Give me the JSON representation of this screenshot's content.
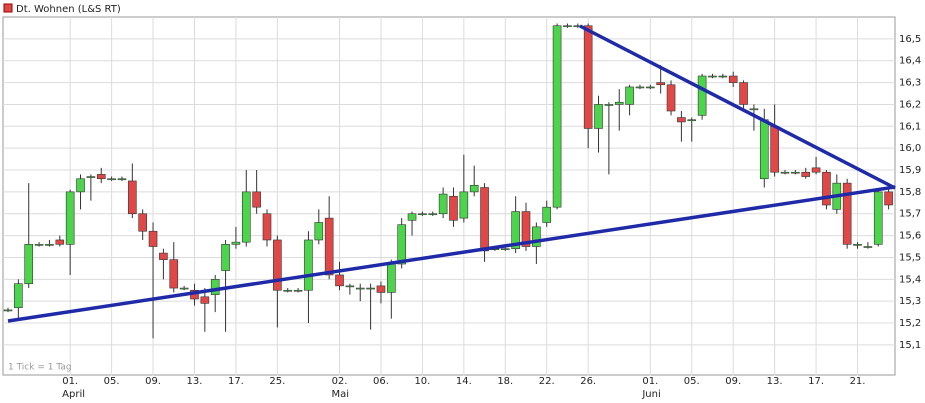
{
  "chart_data": {
    "type": "candlestick",
    "title": "Dt. Wohnen (L&S RT)",
    "note": "1 Tick = 1 Tag",
    "categories": [
      null,
      null,
      null,
      null,
      null,
      null,
      "01.",
      null,
      null,
      null,
      "05.",
      null,
      null,
      null,
      "09.",
      null,
      null,
      null,
      "13.",
      null,
      null,
      null,
      "17.",
      null,
      null,
      null,
      "25.",
      null,
      null,
      null,
      null,
      null,
      "02.",
      null,
      null,
      null,
      "06.",
      null,
      null,
      null,
      "10.",
      null,
      null,
      null,
      "14.",
      null,
      null,
      null,
      "18.",
      null,
      null,
      null,
      "22.",
      null,
      null,
      null,
      "26.",
      null,
      null,
      null,
      null,
      null,
      "01.",
      null,
      null,
      null,
      "05.",
      null,
      null,
      null,
      "09.",
      null,
      null,
      null,
      "13.",
      null,
      null,
      null,
      "17.",
      null,
      null,
      null,
      "21.",
      null,
      null,
      null
    ],
    "months": [
      null,
      null,
      null,
      null,
      null,
      null,
      "April",
      null,
      null,
      null,
      null,
      null,
      null,
      null,
      null,
      null,
      null,
      null,
      null,
      null,
      null,
      null,
      null,
      null,
      null,
      null,
      null,
      null,
      null,
      null,
      null,
      null,
      "Mai",
      null,
      null,
      null,
      null,
      null,
      null,
      null,
      null,
      null,
      null,
      null,
      null,
      null,
      null,
      null,
      null,
      null,
      null,
      null,
      null,
      null,
      null,
      null,
      null,
      null,
      null,
      null,
      null,
      null,
      "Juni",
      null,
      null,
      null,
      null,
      null,
      null,
      null,
      null,
      null,
      null,
      null,
      null,
      null,
      null,
      null,
      null,
      null,
      null,
      null,
      null,
      null,
      null,
      null
    ],
    "open": [
      15.26,
      15.27,
      15.38,
      15.56,
      15.56,
      15.58,
      15.56,
      15.8,
      15.87,
      15.88,
      15.86,
      15.86,
      15.85,
      15.7,
      15.62,
      15.52,
      15.49,
      15.36,
      15.35,
      15.32,
      15.33,
      15.44,
      15.56,
      15.57,
      15.8,
      15.7,
      15.58,
      15.35,
      15.35,
      15.35,
      15.58,
      15.68,
      15.42,
      15.37,
      15.36,
      15.36,
      15.37,
      15.34,
      15.47,
      15.67,
      15.7,
      15.7,
      15.7,
      15.78,
      15.68,
      15.8,
      15.82,
      15.54,
      15.54,
      15.54,
      15.71,
      15.55,
      15.66,
      15.73,
      16.56,
      16.56,
      16.56,
      16.09,
      16.2,
      16.2,
      16.2,
      16.28,
      16.28,
      16.3,
      16.29,
      16.14,
      16.13,
      16.15,
      16.33,
      16.33,
      16.33,
      16.3,
      16.18,
      15.86,
      16.1,
      15.89,
      15.89,
      15.89,
      15.91,
      15.89,
      15.72,
      15.84,
      15.56,
      15.55,
      15.56,
      15.8
    ],
    "high": [
      15.27,
      15.4,
      15.84,
      15.57,
      15.58,
      15.6,
      15.81,
      15.88,
      15.88,
      15.91,
      15.87,
      15.87,
      15.93,
      15.72,
      15.66,
      15.54,
      15.57,
      15.37,
      15.38,
      15.36,
      15.42,
      15.58,
      15.64,
      15.9,
      15.9,
      15.72,
      15.6,
      15.36,
      15.36,
      15.62,
      15.72,
      15.78,
      15.48,
      15.38,
      15.38,
      15.38,
      15.39,
      15.49,
      15.68,
      15.71,
      15.71,
      15.71,
      15.82,
      15.82,
      15.97,
      15.92,
      15.84,
      15.55,
      15.55,
      15.78,
      15.75,
      15.66,
      15.76,
      16.57,
      16.57,
      16.57,
      16.57,
      16.24,
      16.21,
      16.27,
      16.29,
      16.29,
      16.29,
      16.38,
      16.31,
      16.17,
      16.14,
      16.34,
      16.34,
      16.34,
      16.35,
      16.31,
      16.2,
      16.18,
      16.2,
      15.9,
      15.9,
      15.91,
      15.96,
      15.9,
      15.88,
      15.86,
      15.57,
      15.57,
      15.81,
      15.83
    ],
    "low": [
      15.25,
      15.21,
      15.36,
      15.55,
      15.55,
      15.55,
      15.42,
      15.72,
      15.76,
      15.84,
      15.85,
      15.85,
      15.68,
      15.58,
      15.13,
      15.4,
      15.34,
      15.35,
      15.28,
      15.16,
      15.25,
      15.16,
      15.54,
      15.55,
      15.7,
      15.55,
      15.18,
      15.34,
      15.34,
      15.2,
      15.56,
      15.4,
      15.35,
      15.33,
      15.3,
      15.17,
      15.29,
      15.22,
      15.45,
      15.6,
      15.69,
      15.69,
      15.68,
      15.64,
      15.66,
      15.78,
      15.48,
      15.53,
      15.53,
      15.52,
      15.53,
      15.47,
      15.64,
      15.72,
      16.55,
      16.55,
      16.0,
      15.98,
      15.88,
      16.08,
      16.15,
      16.27,
      16.27,
      16.25,
      16.15,
      16.03,
      16.03,
      16.13,
      16.32,
      16.32,
      16.28,
      16.18,
      16.08,
      15.82,
      15.87,
      15.88,
      15.88,
      15.86,
      15.88,
      15.72,
      15.7,
      15.54,
      15.54,
      15.54,
      15.55,
      15.72
    ],
    "close": [
      15.26,
      15.38,
      15.56,
      15.56,
      15.56,
      15.56,
      15.8,
      15.86,
      15.87,
      15.86,
      15.86,
      15.86,
      15.7,
      15.62,
      15.55,
      15.49,
      15.36,
      15.36,
      15.31,
      15.29,
      15.4,
      15.56,
      15.57,
      15.8,
      15.73,
      15.58,
      15.35,
      15.35,
      15.35,
      15.58,
      15.66,
      15.42,
      15.37,
      15.37,
      15.36,
      15.36,
      15.34,
      15.47,
      15.65,
      15.7,
      15.7,
      15.7,
      15.79,
      15.67,
      15.8,
      15.83,
      15.53,
      15.54,
      15.54,
      15.71,
      15.55,
      15.64,
      15.73,
      16.56,
      16.56,
      16.56,
      16.09,
      16.2,
      16.2,
      16.21,
      16.28,
      16.28,
      16.28,
      16.29,
      16.17,
      16.12,
      16.13,
      16.33,
      16.33,
      16.33,
      16.3,
      16.2,
      16.18,
      16.13,
      15.89,
      15.89,
      15.89,
      15.87,
      15.89,
      15.74,
      15.84,
      15.56,
      15.56,
      15.55,
      15.8,
      15.74
    ],
    "up_color": "#4cd44c",
    "down_color": "#e04848",
    "ylim": [
      14.96,
      16.6
    ],
    "yticks": [
      {
        "value": 15.1,
        "label": "15,1"
      },
      {
        "value": 15.2,
        "label": "15,2"
      },
      {
        "value": 15.3,
        "label": "15,3"
      },
      {
        "value": 15.4,
        "label": "15,4"
      },
      {
        "value": 15.5,
        "label": "15,5"
      },
      {
        "value": 15.6,
        "label": "15,6"
      },
      {
        "value": 15.7,
        "label": "15,7"
      },
      {
        "value": 15.8,
        "label": "15,8"
      },
      {
        "value": 15.9,
        "label": "15,9"
      },
      {
        "value": 16.0,
        "label": "16,0"
      },
      {
        "value": 16.1,
        "label": "16,1"
      },
      {
        "value": 16.2,
        "label": "16,2"
      },
      {
        "value": 16.3,
        "label": "16,3"
      },
      {
        "value": 16.4,
        "label": "16,4"
      },
      {
        "value": 16.5,
        "label": "16,5"
      }
    ],
    "grid": true
  }
}
